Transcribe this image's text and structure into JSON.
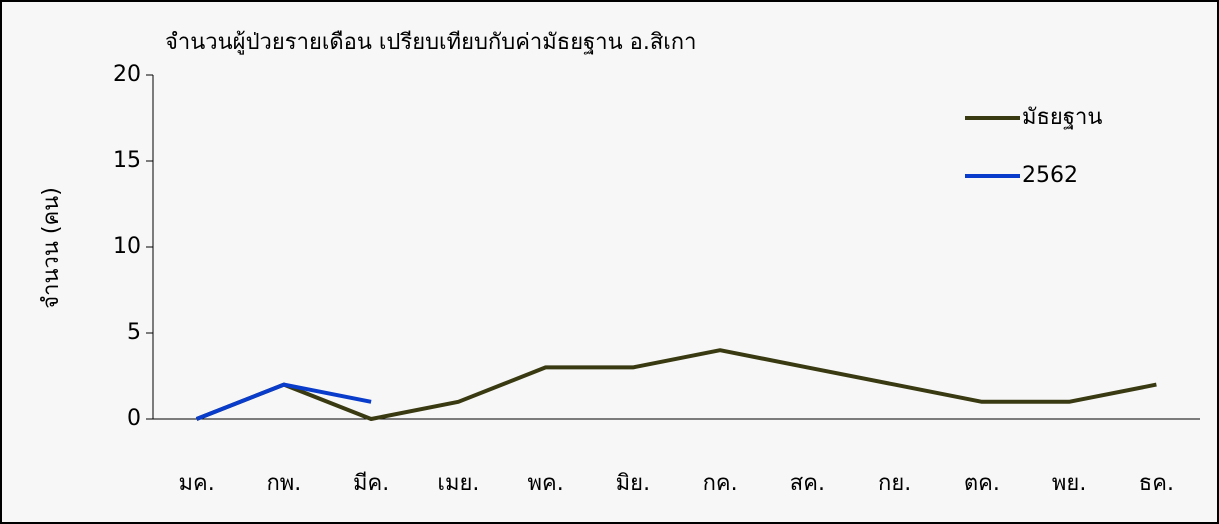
{
  "chart_data": {
    "type": "line",
    "title": "จำนวนผู้ป่วยรายเดือน เปรียบเทียบกับค่ามัธยฐาน อ.สิเกา",
    "y_label": "จำนวน (คน)",
    "categories": [
      "มค.",
      "กพ.",
      "มีค.",
      "เมย.",
      "พค.",
      "มิย.",
      "กค.",
      "สค.",
      "กย.",
      "ตค.",
      "พย.",
      "ธค."
    ],
    "series": [
      {
        "name": "มัธยฐาน",
        "color": "#3a3a12",
        "values": [
          0,
          2,
          0,
          1,
          3,
          3,
          4,
          3,
          2,
          1,
          1,
          2
        ]
      },
      {
        "name": "2562",
        "color": "#0a3ccc",
        "values": [
          0,
          2,
          1,
          null,
          null,
          null,
          null,
          null,
          null,
          null,
          null,
          null
        ]
      }
    ],
    "ylim": [
      0,
      20
    ],
    "yticks": [
      0,
      5,
      10,
      15,
      20
    ],
    "grid": false,
    "legend": "upper right"
  }
}
